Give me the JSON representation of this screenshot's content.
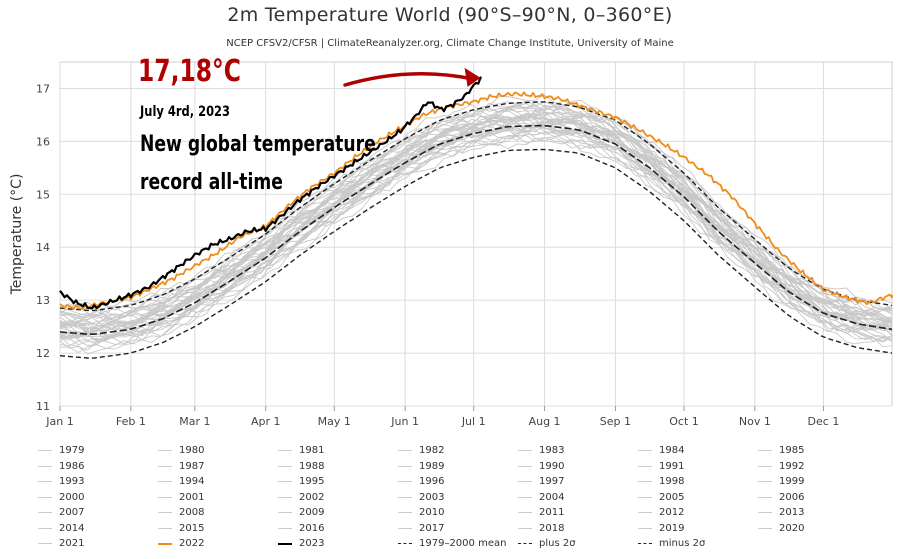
{
  "chart_data": {
    "type": "line",
    "title": "2m Temperature World (90°S–90°N, 0–360°E)",
    "subtitle": "NCEP CFSV2/CFSR | ClimateReanalyzer.org, Climate Change Institute, University of Maine",
    "ylabel": "Temperature (°C)",
    "xlabel": "",
    "ylim": [
      11,
      17.5
    ],
    "y_ticks": [
      "11",
      "12",
      "13",
      "14",
      "15",
      "16",
      "17"
    ],
    "x_ticks": [
      "Jan 1",
      "Feb 1",
      "Mar 1",
      "Apr 1",
      "May 1",
      "Jun 1",
      "Jul 1",
      "Aug 1",
      "Sep 1",
      "Oct 1",
      "Nov 1",
      "Dec 1"
    ],
    "x_tick_days": [
      1,
      32,
      60,
      91,
      121,
      152,
      182,
      213,
      244,
      274,
      305,
      335
    ],
    "grid": true,
    "legend_placement": "bottom",
    "series_key_x": "day_of_year",
    "series": [
      {
        "name": "1979–2000 mean",
        "style": "dashed",
        "color": "#222222",
        "x": [
          1,
          15,
          32,
          46,
          60,
          75,
          91,
          106,
          121,
          137,
          152,
          167,
          182,
          197,
          213,
          228,
          244,
          259,
          274,
          289,
          305,
          320,
          335,
          350,
          365
        ],
        "y": [
          12.4,
          12.35,
          12.45,
          12.65,
          12.95,
          13.35,
          13.8,
          14.3,
          14.75,
          15.2,
          15.6,
          15.95,
          16.15,
          16.28,
          16.3,
          16.22,
          15.95,
          15.5,
          14.95,
          14.3,
          13.7,
          13.15,
          12.75,
          12.55,
          12.45
        ]
      },
      {
        "name": "plus 2σ",
        "style": "dashed",
        "color": "#222222",
        "x": [
          1,
          15,
          32,
          46,
          60,
          75,
          91,
          106,
          121,
          137,
          152,
          167,
          182,
          197,
          213,
          228,
          244,
          259,
          274,
          289,
          305,
          320,
          335,
          350,
          365
        ],
        "y": [
          12.85,
          12.8,
          12.9,
          13.1,
          13.4,
          13.8,
          14.25,
          14.75,
          15.2,
          15.65,
          16.05,
          16.4,
          16.6,
          16.72,
          16.75,
          16.65,
          16.4,
          15.95,
          15.4,
          14.75,
          14.15,
          13.6,
          13.2,
          13.0,
          12.9
        ]
      },
      {
        "name": "minus 2σ",
        "style": "dashed",
        "color": "#222222",
        "x": [
          1,
          15,
          32,
          46,
          60,
          75,
          91,
          106,
          121,
          137,
          152,
          167,
          182,
          197,
          213,
          228,
          244,
          259,
          274,
          289,
          305,
          320,
          335,
          350,
          365
        ],
        "y": [
          11.95,
          11.9,
          12.0,
          12.2,
          12.5,
          12.9,
          13.35,
          13.85,
          14.3,
          14.75,
          15.15,
          15.5,
          15.7,
          15.83,
          15.85,
          15.78,
          15.5,
          15.05,
          14.5,
          13.85,
          13.25,
          12.7,
          12.3,
          12.1,
          12.0
        ]
      },
      {
        "name": "2022",
        "style": "solid",
        "color": "#f08c1a",
        "x": [
          1,
          10,
          20,
          32,
          40,
          50,
          60,
          70,
          80,
          91,
          100,
          110,
          121,
          130,
          140,
          152,
          160,
          170,
          182,
          190,
          200,
          213,
          220,
          230,
          244,
          255,
          265,
          274,
          285,
          295,
          305,
          315,
          325,
          335,
          345,
          355,
          365
        ],
        "y": [
          12.9,
          12.85,
          12.95,
          13.05,
          13.2,
          13.4,
          13.65,
          13.9,
          14.2,
          14.4,
          14.75,
          15.1,
          15.4,
          15.7,
          16.0,
          16.3,
          16.5,
          16.65,
          16.75,
          16.85,
          16.9,
          16.85,
          16.8,
          16.65,
          16.45,
          16.2,
          15.95,
          15.7,
          15.35,
          14.95,
          14.45,
          13.95,
          13.55,
          13.2,
          13.05,
          12.95,
          13.1
        ]
      },
      {
        "name": "2023",
        "style": "solid",
        "color": "#000000",
        "x": [
          1,
          8,
          15,
          22,
          32,
          40,
          50,
          60,
          68,
          75,
          83,
          91,
          98,
          106,
          114,
          121,
          128,
          135,
          142,
          150,
          156,
          162,
          168,
          173,
          178,
          182,
          185
        ],
        "y": [
          13.15,
          12.95,
          12.85,
          12.95,
          13.1,
          13.25,
          13.55,
          13.85,
          14.05,
          14.15,
          14.3,
          14.35,
          14.6,
          14.9,
          15.15,
          15.35,
          15.55,
          15.75,
          15.95,
          16.2,
          16.45,
          16.75,
          16.6,
          16.7,
          16.85,
          17.05,
          17.18
        ]
      }
    ],
    "background_years": [
      "1979",
      "1980",
      "1981",
      "1982",
      "1983",
      "1984",
      "1985",
      "1986",
      "1987",
      "1988",
      "1989",
      "1990",
      "1991",
      "1992",
      "1993",
      "1994",
      "1995",
      "1996",
      "1997",
      "1998",
      "1999",
      "2000",
      "2001",
      "2002",
      "2003",
      "2004",
      "2005",
      "2006",
      "2007",
      "2008",
      "2009",
      "2010",
      "2011",
      "2012",
      "2013",
      "2014",
      "2015",
      "2016",
      "2017",
      "2018",
      "2019",
      "2020",
      "2021"
    ],
    "annotations": {
      "record_value": "17,18°C",
      "record_date": "July 4rd, 2023",
      "record_text_line1": "New global temperature",
      "record_text_line2": "record all-time",
      "arrow_target_day": 185,
      "arrow_target_value": 17.18
    },
    "colors": {
      "background_years": "#c8c8c8",
      "year_2022": "#f08c1a",
      "year_2023": "#000000",
      "stats": "#222222",
      "annotation_red": "#b00000",
      "grid": "#dcdcdc"
    },
    "legend": [
      [
        "1979",
        "1980",
        "1981",
        "1982",
        "1983",
        "1984",
        "1985"
      ],
      [
        "1986",
        "1987",
        "1988",
        "1989",
        "1990",
        "1991",
        "1992"
      ],
      [
        "1993",
        "1994",
        "1995",
        "1996",
        "1997",
        "1998",
        "1999"
      ],
      [
        "2000",
        "2001",
        "2002",
        "2003",
        "2004",
        "2005",
        "2006"
      ],
      [
        "2007",
        "2008",
        "2009",
        "2010",
        "2011",
        "2012",
        "2013"
      ],
      [
        "2014",
        "2015",
        "2016",
        "2017",
        "2018",
        "2019",
        "2020"
      ],
      [
        "2021",
        "2022",
        "2023",
        "1979–2000 mean",
        "plus 2σ",
        "minus 2σ"
      ]
    ]
  }
}
